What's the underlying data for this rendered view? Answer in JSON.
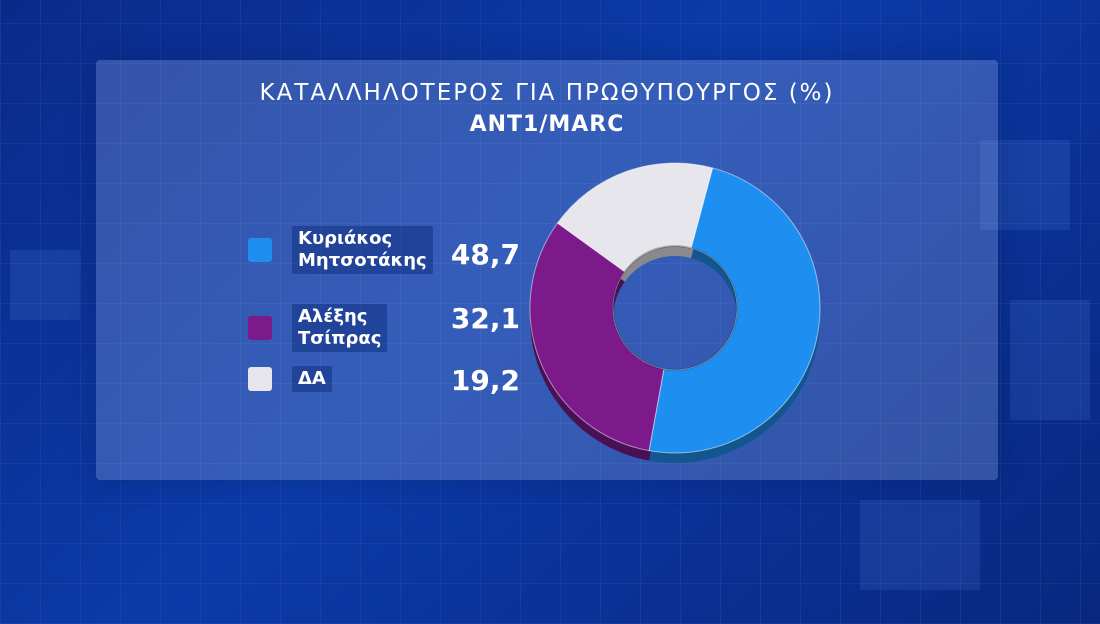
{
  "chart_data": {
    "type": "pie",
    "title": "ΚΑΤΑΛΛΗΛΟΤΕΡΟΣ ΓΙΑ ΠΡΩΘΥΠΟΥΡΓΟΣ (%)",
    "subtitle": "ANT1/MARC",
    "donut": true,
    "legend_position": "left",
    "categories": [
      "Κυριάκος Μητσοτάκης",
      "Αλέξης Τσίπρας",
      "ΔΑ"
    ],
    "values": [
      48.7,
      32.1,
      19.2
    ],
    "value_labels": [
      "48,7",
      "32,1",
      "19,2"
    ],
    "legend": [
      {
        "line1": "Κυριάκος",
        "line2": "Μητσοτάκης"
      },
      {
        "line1": "Αλέξης",
        "line2": "Τσίπρας"
      },
      {
        "line1": "ΔΑ",
        "line2": ""
      }
    ],
    "colors": [
      "#1e8ff0",
      "#7c1a8c",
      "#e6e6ec"
    ]
  }
}
